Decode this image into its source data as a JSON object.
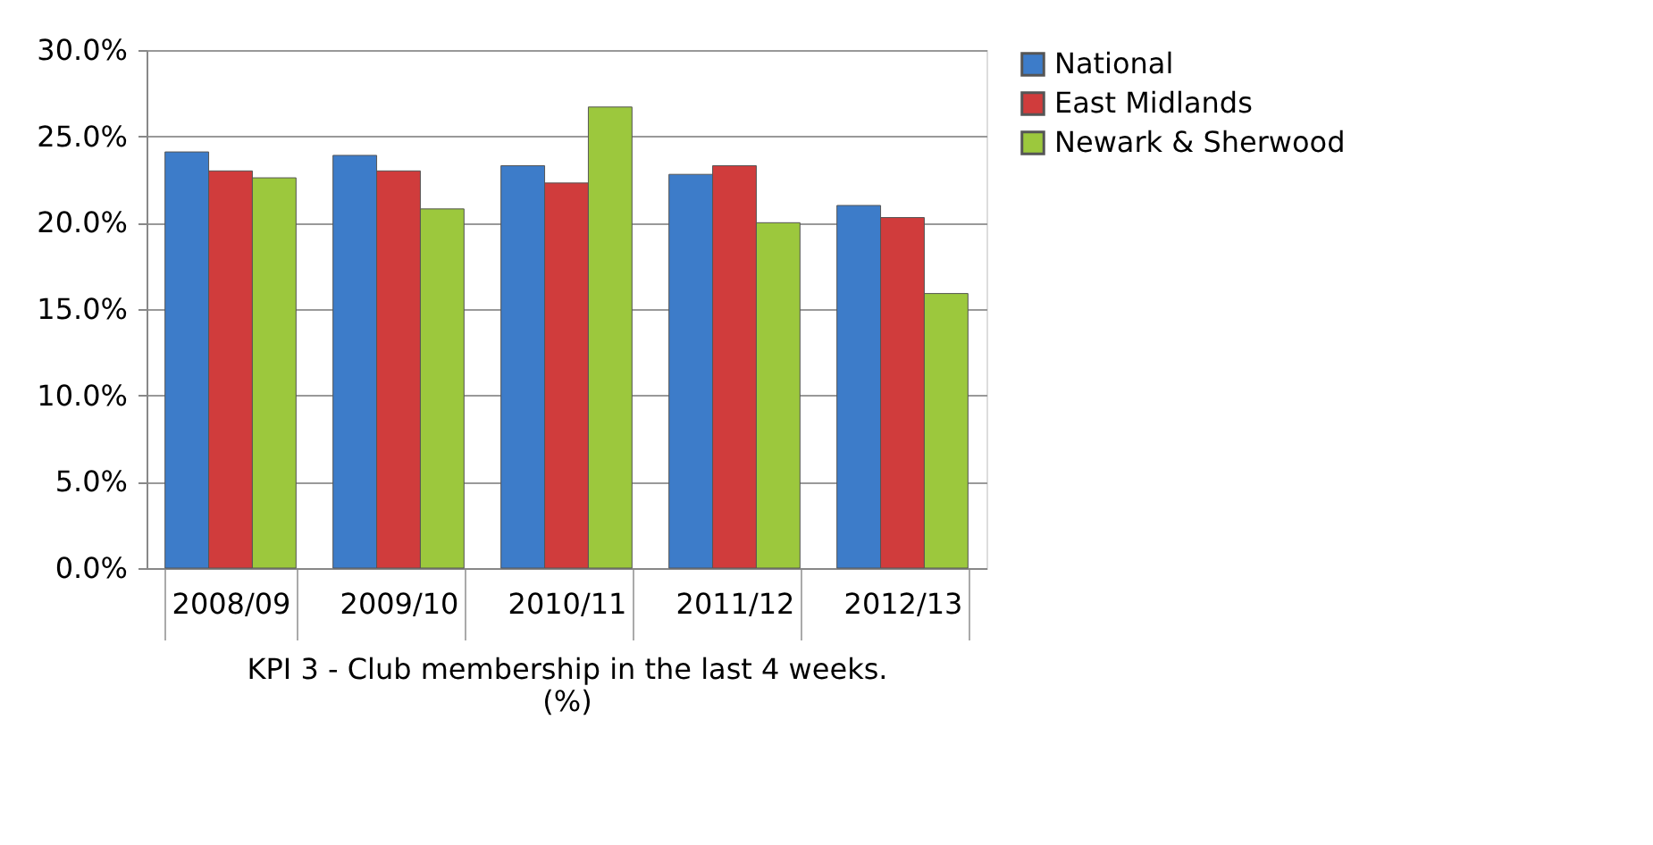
{
  "chart_data": {
    "type": "bar",
    "xlabel": "KPI 3 - Club membership in the last 4 weeks. (%)",
    "categories": [
      "2008/09",
      "2009/10",
      "2010/11",
      "2011/12",
      "2012/13"
    ],
    "series": [
      {
        "name": "National",
        "color": "#3d7cc9",
        "values": [
          24.1,
          23.9,
          23.3,
          22.8,
          21.0
        ]
      },
      {
        "name": "East Midlands",
        "color": "#d03c3c",
        "values": [
          23.0,
          23.0,
          22.3,
          23.3,
          20.3
        ]
      },
      {
        "name": "Newark & Sherwood",
        "color": "#9cc83d",
        "values": [
          22.6,
          20.8,
          26.7,
          20.0,
          15.9
        ]
      }
    ],
    "ylim": [
      0,
      30
    ],
    "yticks": [
      {
        "value": 0,
        "label": "0.0%"
      },
      {
        "value": 5,
        "label": "5.0%"
      },
      {
        "value": 10,
        "label": "10.0%"
      },
      {
        "value": 15,
        "label": "15.0%"
      },
      {
        "value": 20,
        "label": "20.0%"
      },
      {
        "value": 25,
        "label": "25.0%"
      },
      {
        "value": 30,
        "label": "30.0%"
      }
    ],
    "grid": "y",
    "legend": "right"
  }
}
